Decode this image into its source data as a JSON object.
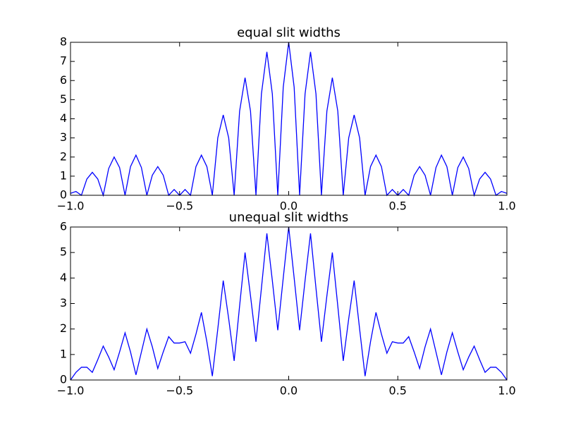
{
  "chart_data": [
    {
      "type": "line",
      "title": "equal slit widths",
      "color": "#0000ff",
      "x": [
        -1,
        -0.975,
        -0.95,
        -0.925,
        -0.9,
        -0.875,
        -0.85,
        -0.825,
        -0.8,
        -0.775,
        -0.75,
        -0.725,
        -0.7,
        -0.675,
        -0.65,
        -0.625,
        -0.6,
        -0.575,
        -0.55,
        -0.525,
        -0.5,
        -0.475,
        -0.45,
        -0.425,
        -0.4,
        -0.375,
        -0.35,
        -0.325,
        -0.3,
        -0.275,
        -0.25,
        -0.225,
        -0.2,
        -0.175,
        -0.15,
        -0.125,
        -0.1,
        -0.075,
        -0.05,
        -0.025,
        0,
        0.025,
        0.05,
        0.075,
        0.1,
        0.125,
        0.15,
        0.175,
        0.2,
        0.225,
        0.25,
        0.275,
        0.3,
        0.325,
        0.35,
        0.375,
        0.4,
        0.425,
        0.45,
        0.475,
        0.5,
        0.525,
        0.55,
        0.575,
        0.6,
        0.625,
        0.65,
        0.675,
        0.7,
        0.725,
        0.75,
        0.775,
        0.8,
        0.825,
        0.85,
        0.875,
        0.9,
        0.925,
        0.95,
        0.975,
        1
      ],
      "values": [
        0.1,
        0.2,
        0,
        0.85,
        1.2,
        0.85,
        0,
        1.4,
        2.0,
        1.45,
        0,
        1.5,
        2.1,
        1.45,
        0,
        1.05,
        1.5,
        1.05,
        0,
        0.3,
        0,
        0.3,
        0,
        1.5,
        2.1,
        1.5,
        0,
        3.0,
        4.2,
        3.0,
        0,
        4.4,
        6.15,
        4.4,
        0,
        5.3,
        7.5,
        5.3,
        0,
        5.65,
        8,
        5.65,
        0,
        5.3,
        7.5,
        5.3,
        0,
        4.4,
        6.15,
        4.4,
        0,
        3.0,
        4.2,
        3.0,
        0,
        1.5,
        2.1,
        1.5,
        0,
        0.3,
        0,
        0.3,
        0,
        1.05,
        1.5,
        1.05,
        0,
        1.45,
        2.1,
        1.5,
        0,
        1.45,
        2.0,
        1.4,
        0,
        0.85,
        1.2,
        0.85,
        0,
        0.2,
        0.1
      ],
      "xlim": [
        -1,
        1
      ],
      "ylim": [
        0,
        8
      ],
      "xticks": [
        {
          "value": -1,
          "label": "−1.0"
        },
        {
          "value": -0.5,
          "label": "−0.5"
        },
        {
          "value": 0,
          "label": "0.0"
        },
        {
          "value": 0.5,
          "label": "0.5"
        },
        {
          "value": 1,
          "label": "1.0"
        }
      ],
      "yticks": [
        0,
        1,
        2,
        3,
        4,
        5,
        6,
        7,
        8
      ]
    },
    {
      "type": "line",
      "title": "unequal slit widths",
      "color": "#0000ff",
      "x": [
        -1,
        -0.975,
        -0.95,
        -0.925,
        -0.9,
        -0.875,
        -0.85,
        -0.825,
        -0.8,
        -0.775,
        -0.75,
        -0.725,
        -0.7,
        -0.675,
        -0.65,
        -0.625,
        -0.6,
        -0.575,
        -0.55,
        -0.525,
        -0.5,
        -0.475,
        -0.45,
        -0.425,
        -0.4,
        -0.375,
        -0.35,
        -0.325,
        -0.3,
        -0.275,
        -0.25,
        -0.225,
        -0.2,
        -0.175,
        -0.15,
        -0.125,
        -0.1,
        -0.075,
        -0.05,
        -0.025,
        0,
        0.025,
        0.05,
        0.075,
        0.1,
        0.125,
        0.15,
        0.175,
        0.2,
        0.225,
        0.25,
        0.275,
        0.3,
        0.325,
        0.35,
        0.375,
        0.4,
        0.425,
        0.45,
        0.475,
        0.5,
        0.525,
        0.55,
        0.575,
        0.6,
        0.625,
        0.65,
        0.675,
        0.7,
        0.725,
        0.75,
        0.775,
        0.8,
        0.825,
        0.85,
        0.875,
        0.9,
        0.925,
        0.95,
        0.975,
        1
      ],
      "values": [
        0,
        0.3,
        0.5,
        0.5,
        0.3,
        0.8,
        1.33,
        0.9,
        0.4,
        1.1,
        1.85,
        1.1,
        0.2,
        1.1,
        2.0,
        1.3,
        0.45,
        1.1,
        1.7,
        1.45,
        1.45,
        1.5,
        1.05,
        1.8,
        2.65,
        1.5,
        0.15,
        2.0,
        3.9,
        2.4,
        0.75,
        2.9,
        5.0,
        3.3,
        1.5,
        3.6,
        5.75,
        3.9,
        1.95,
        4.0,
        6.0,
        4.0,
        1.95,
        3.9,
        5.75,
        3.6,
        1.5,
        3.3,
        5.0,
        2.9,
        0.75,
        2.4,
        3.9,
        2.0,
        0.15,
        1.5,
        2.65,
        1.8,
        1.05,
        1.5,
        1.45,
        1.45,
        1.7,
        1.1,
        0.45,
        1.3,
        2.0,
        1.1,
        0.2,
        1.1,
        1.85,
        1.1,
        0.4,
        0.9,
        1.33,
        0.8,
        0.3,
        0.5,
        0.5,
        0.3,
        0
      ],
      "xlim": [
        -1,
        1
      ],
      "ylim": [
        0,
        6
      ],
      "xticks": [
        {
          "value": -1,
          "label": "−1.0"
        },
        {
          "value": -0.5,
          "label": "−0.5"
        },
        {
          "value": 0,
          "label": "0.0"
        },
        {
          "value": 0.5,
          "label": "0.5"
        },
        {
          "value": 1,
          "label": "1.0"
        }
      ],
      "yticks": [
        0,
        1,
        2,
        3,
        4,
        5,
        6
      ]
    }
  ]
}
